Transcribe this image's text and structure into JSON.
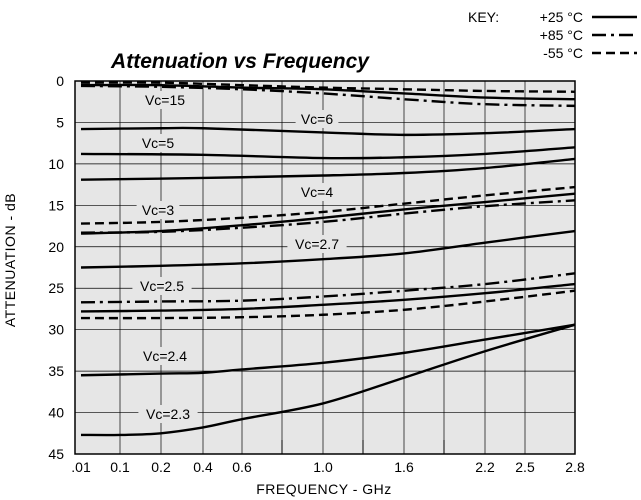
{
  "chart_data": {
    "type": "line",
    "title": "Attenuation vs Frequency",
    "xlabel": "FREQUENCY - GHz",
    "ylabel": "ATTENUATION - dB",
    "x_ticks": [
      ".01",
      "0.1",
      "0.2",
      "0.4",
      "0.6",
      "1.0",
      "1.6",
      "2.2",
      "2.5",
      "2.8"
    ],
    "y_ticks": [
      "0",
      "5",
      "10",
      "15",
      "20",
      "25",
      "30",
      "35",
      "40",
      "45"
    ],
    "ylim": [
      0,
      45
    ],
    "y_inverted": true,
    "grid": true,
    "background": "#e6e6e6",
    "x_scale": "non-uniform (tick positions as printed)",
    "legend": {
      "title": "KEY:",
      "position": "top-right",
      "entries": [
        {
          "label": "+25 °C",
          "style": "solid"
        },
        {
          "label": "+85 °C",
          "style": "dashdot"
        },
        {
          "label": "-55 °C",
          "style": "dashed"
        }
      ]
    },
    "annotations": [
      "Vc=15",
      "Vc=6",
      "Vc=5",
      "Vc=4",
      "Vc=3",
      "Vc=2.7",
      "Vc=2.5",
      "Vc=2.4",
      "Vc=2.3"
    ],
    "series": [
      {
        "group": "Vc=15",
        "style": "solid",
        "x": [
          ".01",
          "0.2",
          "0.6",
          "1.0",
          "1.6",
          "2.2",
          "2.8"
        ],
        "y": [
          0.5,
          0.5,
          0.8,
          1.0,
          1.5,
          2.0,
          2.2
        ]
      },
      {
        "group": "Vc=15",
        "style": "dashdot",
        "x": [
          ".01",
          "0.2",
          "0.6",
          "1.0",
          "1.6",
          "2.2",
          "2.8"
        ],
        "y": [
          0.6,
          0.7,
          1.0,
          1.5,
          2.2,
          2.8,
          3.0
        ]
      },
      {
        "group": "Vc=15",
        "style": "dashed",
        "x": [
          ".01",
          "0.2",
          "0.6",
          "1.0",
          "1.6",
          "2.2",
          "2.8"
        ],
        "y": [
          0.2,
          0.2,
          0.5,
          0.8,
          1.0,
          1.2,
          1.3
        ]
      },
      {
        "group": "Vc=6",
        "style": "solid",
        "x": [
          ".01",
          "0.2",
          "0.4",
          "1.0",
          "1.6",
          "2.2",
          "2.8"
        ],
        "y": [
          5.8,
          5.7,
          5.7,
          6.2,
          6.5,
          6.3,
          5.8
        ]
      },
      {
        "group": "Vc=5",
        "style": "solid",
        "x": [
          ".01",
          "0.4",
          "1.0",
          "1.6",
          "2.2",
          "2.8"
        ],
        "y": [
          8.8,
          8.9,
          9.3,
          9.2,
          8.8,
          8.0
        ]
      },
      {
        "group": "Vc=4",
        "style": "solid",
        "x": [
          ".01",
          "0.4",
          "1.0",
          "1.6",
          "2.2",
          "2.8"
        ],
        "y": [
          11.9,
          11.7,
          11.4,
          11.1,
          10.5,
          9.4
        ]
      },
      {
        "group": "Vc=3",
        "style": "solid",
        "x": [
          ".01",
          "0.2",
          "0.6",
          "1.0",
          "1.6",
          "2.2",
          "2.8"
        ],
        "y": [
          18.4,
          18.1,
          17.4,
          16.5,
          15.5,
          14.6,
          13.6
        ]
      },
      {
        "group": "Vc=3",
        "style": "dashdot",
        "x": [
          ".01",
          "0.2",
          "0.6",
          "1.0",
          "1.6",
          "2.2",
          "2.8"
        ],
        "y": [
          18.3,
          18.2,
          17.7,
          17.0,
          16.0,
          15.1,
          14.4
        ]
      },
      {
        "group": "Vc=3",
        "style": "dashed",
        "x": [
          ".01",
          "0.2",
          "0.6",
          "1.0",
          "1.6",
          "2.2",
          "2.8"
        ],
        "y": [
          17.2,
          17.0,
          16.5,
          15.8,
          14.8,
          13.8,
          12.8
        ]
      },
      {
        "group": "Vc=2.7",
        "style": "solid",
        "x": [
          ".01",
          "0.2",
          "0.6",
          "1.0",
          "1.6",
          "2.2",
          "2.8"
        ],
        "y": [
          22.5,
          22.3,
          22.0,
          21.5,
          20.8,
          19.5,
          18.1
        ]
      },
      {
        "group": "Vc=2.5",
        "style": "solid",
        "x": [
          ".01",
          "0.2",
          "0.6",
          "1.0",
          "1.6",
          "2.2",
          "2.8"
        ],
        "y": [
          27.8,
          27.7,
          27.5,
          27.0,
          26.4,
          25.6,
          24.5
        ]
      },
      {
        "group": "Vc=2.5",
        "style": "dashdot",
        "x": [
          ".01",
          "0.2",
          "0.6",
          "1.0",
          "1.6",
          "2.2",
          "2.8"
        ],
        "y": [
          26.7,
          26.6,
          26.5,
          26.0,
          25.3,
          24.5,
          23.2
        ]
      },
      {
        "group": "Vc=2.5",
        "style": "dashed",
        "x": [
          ".01",
          "0.2",
          "0.6",
          "1.0",
          "1.6",
          "2.2",
          "2.8"
        ],
        "y": [
          28.6,
          28.6,
          28.5,
          28.2,
          27.6,
          26.6,
          25.3
        ]
      },
      {
        "group": "Vc=2.4",
        "style": "solid",
        "x": [
          ".01",
          "0.2",
          "0.4",
          "0.6",
          "1.0",
          "1.6",
          "2.2",
          "2.8"
        ],
        "y": [
          35.5,
          35.3,
          35.2,
          34.8,
          34.0,
          32.8,
          31.2,
          29.4
        ]
      },
      {
        "group": "Vc=2.3",
        "style": "solid",
        "x": [
          ".01",
          "0.1",
          "0.2",
          "0.4",
          "0.6",
          "1.0",
          "1.6",
          "2.2",
          "2.8"
        ],
        "y": [
          42.7,
          42.7,
          42.5,
          41.8,
          40.8,
          38.9,
          35.8,
          32.6,
          29.4
        ]
      }
    ]
  }
}
